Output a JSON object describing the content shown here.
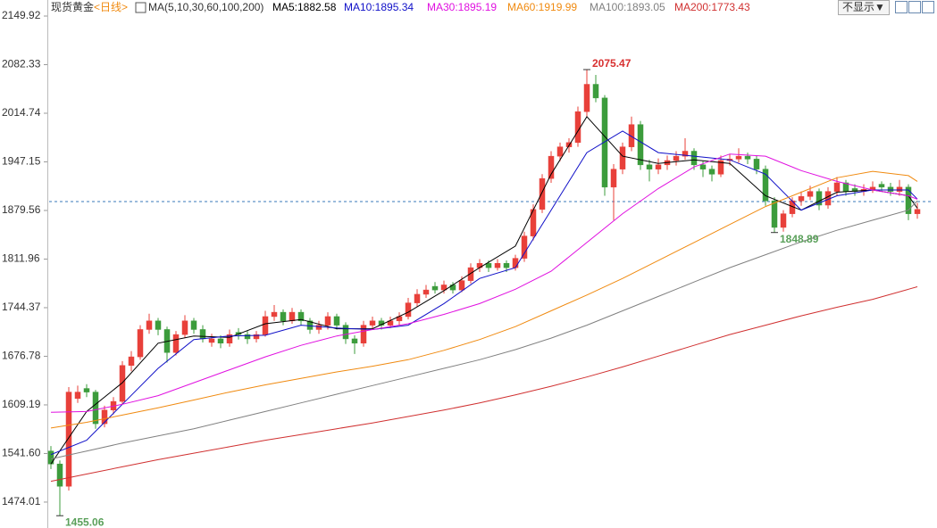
{
  "chart_data": {
    "type": "candlestick",
    "title": "现货黄金",
    "period": "<日线>",
    "indicator": "MA(5,10,30,60,100,200)",
    "hide_button": "不显示▼",
    "up_color": "#e8403a",
    "down_color": "#3c9c3c",
    "xlim": [
      -0.2,
      98.3
    ],
    "ylim": [
      1437.97,
      2172.24
    ],
    "yticks": [
      2149.92,
      2082.33,
      2014.74,
      1947.15,
      1879.56,
      1811.96,
      1744.37,
      1676.78,
      1609.19,
      {
        "value": 1541.6,
        "label": "1541.60"
      },
      1474.01
    ],
    "reference_line": 1892,
    "open": [
      1545,
      1527,
      1496,
      1618,
      1632,
      1627,
      1583,
      1602,
      1614,
      1664,
      1676,
      1714,
      1726,
      1714,
      1682,
      1707,
      1726,
      1714,
      1696,
      1701,
      1695,
      1710,
      1707,
      1701,
      1707,
      1732,
      1738,
      1726,
      1738,
      1726,
      1714,
      1720,
      1732,
      1720,
      1701,
      1695,
      1720,
      1726,
      1720,
      1726,
      1732,
      1751,
      1763,
      1774,
      1769,
      1776,
      1769,
      1782,
      1800,
      1806,
      1800,
      1806,
      1800,
      1813,
      1844,
      1881,
      1924,
      1955,
      1968,
      1974,
      2017,
      2055,
      2036,
      1912,
      1937,
      1968,
      1999,
      1943,
      1937,
      1943,
      1949,
      1955,
      1962,
      1943,
      1937,
      1930,
      1949,
      1951,
      1955,
      1951,
      1937,
      1893,
      1856,
      1875,
      1893,
      1899,
      1906,
      1887,
      1906,
      1918,
      1910,
      1906,
      1909,
      1916,
      1912,
      1906,
      1912,
      1875
    ],
    "high": [
      1552,
      1532,
      1634,
      1636,
      1638,
      1630,
      1608,
      1620,
      1670,
      1684,
      1720,
      1736,
      1730,
      1718,
      1712,
      1734,
      1730,
      1720,
      1708,
      1706,
      1714,
      1716,
      1712,
      1712,
      1740,
      1748,
      1742,
      1744,
      1742,
      1730,
      1726,
      1738,
      1736,
      1724,
      1706,
      1726,
      1732,
      1730,
      1732,
      1738,
      1758,
      1770,
      1776,
      1780,
      1782,
      1780,
      1788,
      1806,
      1812,
      1810,
      1812,
      1810,
      1818,
      1850,
      1888,
      1930,
      1962,
      1974,
      1980,
      2024,
      2075.47,
      2068,
      2040,
      1944,
      1974,
      2010,
      2004,
      1950,
      1952,
      1956,
      1962,
      1980,
      1966,
      1948,
      1942,
      1956,
      1958,
      1966,
      1960,
      1956,
      1942,
      1898,
      1880,
      1898,
      1906,
      1914,
      1910,
      1912,
      1926,
      1922,
      1916,
      1916,
      1920,
      1920,
      1918,
      1922,
      1916,
      1890
    ],
    "low": [
      1520,
      1455.06,
      1490,
      1612,
      1620,
      1576,
      1578,
      1596,
      1610,
      1656,
      1672,
      1708,
      1706,
      1668,
      1678,
      1702,
      1708,
      1696,
      1690,
      1688,
      1690,
      1700,
      1694,
      1696,
      1704,
      1726,
      1720,
      1722,
      1720,
      1708,
      1708,
      1714,
      1714,
      1694,
      1680,
      1690,
      1714,
      1714,
      1716,
      1720,
      1728,
      1746,
      1758,
      1764,
      1764,
      1764,
      1766,
      1778,
      1794,
      1794,
      1796,
      1794,
      1796,
      1808,
      1838,
      1876,
      1918,
      1948,
      1960,
      1968,
      2010,
      2030,
      1900,
      1866,
      1930,
      1962,
      1936,
      1920,
      1930,
      1936,
      1942,
      1950,
      1936,
      1926,
      1920,
      1926,
      1942,
      1946,
      1944,
      1930,
      1886,
      1848.89,
      1850,
      1870,
      1886,
      1894,
      1880,
      1882,
      1900,
      1900,
      1900,
      1900,
      1904,
      1906,
      1900,
      1900,
      1866,
      1868
    ],
    "close": [
      1527,
      1496,
      1627,
      1627,
      1627,
      1583,
      1602,
      1614,
      1664,
      1676,
      1714,
      1726,
      1714,
      1682,
      1707,
      1726,
      1714,
      1701,
      1701,
      1695,
      1707,
      1707,
      1701,
      1707,
      1732,
      1738,
      1726,
      1738,
      1726,
      1714,
      1720,
      1732,
      1720,
      1701,
      1695,
      1720,
      1726,
      1720,
      1726,
      1732,
      1751,
      1763,
      1769,
      1769,
      1776,
      1769,
      1782,
      1800,
      1806,
      1800,
      1806,
      1800,
      1813,
      1844,
      1881,
      1924,
      1955,
      1968,
      1974,
      2017,
      2055,
      2036,
      1912,
      1937,
      1968,
      1999,
      1943,
      1937,
      1943,
      1949,
      1955,
      1962,
      1943,
      1937,
      1930,
      1949,
      1951,
      1955,
      1951,
      1937,
      1893,
      1856,
      1875,
      1893,
      1899,
      1906,
      1887,
      1906,
      1918,
      1906,
      1906,
      1909,
      1912,
      1912,
      1906,
      1912,
      1875,
      1881
    ],
    "annotations": [
      {
        "label": "2075.47",
        "candle": 60,
        "value": 2075.47,
        "color": "#d83030"
      },
      {
        "label": "1848.89",
        "candle": 81,
        "value": 1848.89,
        "color": "#5aa05a"
      },
      {
        "label": "1455.06",
        "candle": 1,
        "value": 1455.06,
        "color": "#5aa05a"
      }
    ],
    "series": [
      {
        "name": "MA5:1882.58",
        "color": "#000000",
        "x": [
          0,
          4,
          8,
          12,
          16,
          20,
          24,
          28,
          32,
          36,
          40,
          44,
          48,
          52,
          56,
          60,
          64,
          68,
          72,
          76,
          80,
          84,
          88,
          92,
          96,
          97
        ],
        "values": [
          1527,
          1600,
          1640,
          1695,
          1705,
          1703,
          1722,
          1728,
          1715,
          1715,
          1738,
          1768,
          1800,
          1830,
          1930,
          2010,
          1955,
          1945,
          1950,
          1945,
          1900,
          1880,
          1905,
          1908,
          1900,
          1882.58
        ]
      },
      {
        "name": "MA10:1895.34",
        "color": "#1010c8",
        "x": [
          0,
          4,
          8,
          12,
          16,
          20,
          24,
          28,
          32,
          36,
          40,
          44,
          48,
          52,
          56,
          60,
          64,
          68,
          72,
          76,
          80,
          84,
          88,
          92,
          96,
          97
        ],
        "values": [
          1540,
          1560,
          1610,
          1660,
          1700,
          1705,
          1706,
          1720,
          1716,
          1714,
          1720,
          1750,
          1785,
          1800,
          1880,
          1960,
          1990,
          1960,
          1955,
          1950,
          1930,
          1880,
          1900,
          1908,
          1908,
          1895.34
        ]
      },
      {
        "name": "MA30:1895.19",
        "color": "#e010e0",
        "x": [
          0,
          4,
          8,
          12,
          16,
          20,
          24,
          28,
          32,
          36,
          40,
          44,
          48,
          52,
          56,
          60,
          64,
          68,
          72,
          76,
          80,
          84,
          88,
          92,
          96,
          97
        ],
        "values": [
          1599,
          1600,
          1610,
          1622,
          1640,
          1658,
          1676,
          1692,
          1705,
          1714,
          1722,
          1735,
          1750,
          1770,
          1795,
          1835,
          1875,
          1910,
          1940,
          1958,
          1955,
          1935,
          1920,
          1908,
          1900,
          1895.19
        ]
      },
      {
        "name": "MA60:1919.99",
        "color": "#f08a10",
        "x": [
          0,
          4,
          8,
          12,
          16,
          20,
          24,
          28,
          32,
          36,
          40,
          44,
          48,
          52,
          56,
          60,
          64,
          68,
          72,
          76,
          80,
          84,
          88,
          92,
          96,
          97
        ],
        "values": [
          1577,
          1585,
          1595,
          1605,
          1616,
          1627,
          1637,
          1646,
          1655,
          1663,
          1672,
          1685,
          1700,
          1718,
          1740,
          1762,
          1785,
          1810,
          1835,
          1860,
          1885,
          1905,
          1925,
          1934,
          1928,
          1919.99
        ]
      },
      {
        "name": "MA100:1893.05",
        "color": "#808080",
        "x": [
          0,
          4,
          8,
          12,
          16,
          20,
          24,
          28,
          32,
          36,
          40,
          44,
          48,
          52,
          56,
          60,
          64,
          68,
          72,
          76,
          80,
          84,
          88,
          92,
          96,
          97
        ],
        "values": [
          1534,
          1545,
          1556,
          1566,
          1576,
          1588,
          1600,
          1612,
          1624,
          1636,
          1648,
          1660,
          1672,
          1686,
          1702,
          1720,
          1740,
          1760,
          1780,
          1800,
          1818,
          1836,
          1852,
          1866,
          1880,
          1893.05
        ]
      },
      {
        "name": "MA200:1773.43",
        "color": "#d03030",
        "x": [
          0,
          4,
          8,
          12,
          16,
          20,
          24,
          28,
          32,
          36,
          40,
          44,
          48,
          52,
          56,
          60,
          64,
          68,
          72,
          76,
          80,
          84,
          88,
          92,
          96,
          97
        ],
        "values": [
          1503,
          1513,
          1523,
          1533,
          1542,
          1551,
          1560,
          1568,
          1576,
          1584,
          1593,
          1602,
          1612,
          1623,
          1635,
          1648,
          1662,
          1677,
          1692,
          1707,
          1720,
          1733,
          1745,
          1756,
          1770,
          1773.43
        ]
      }
    ]
  }
}
